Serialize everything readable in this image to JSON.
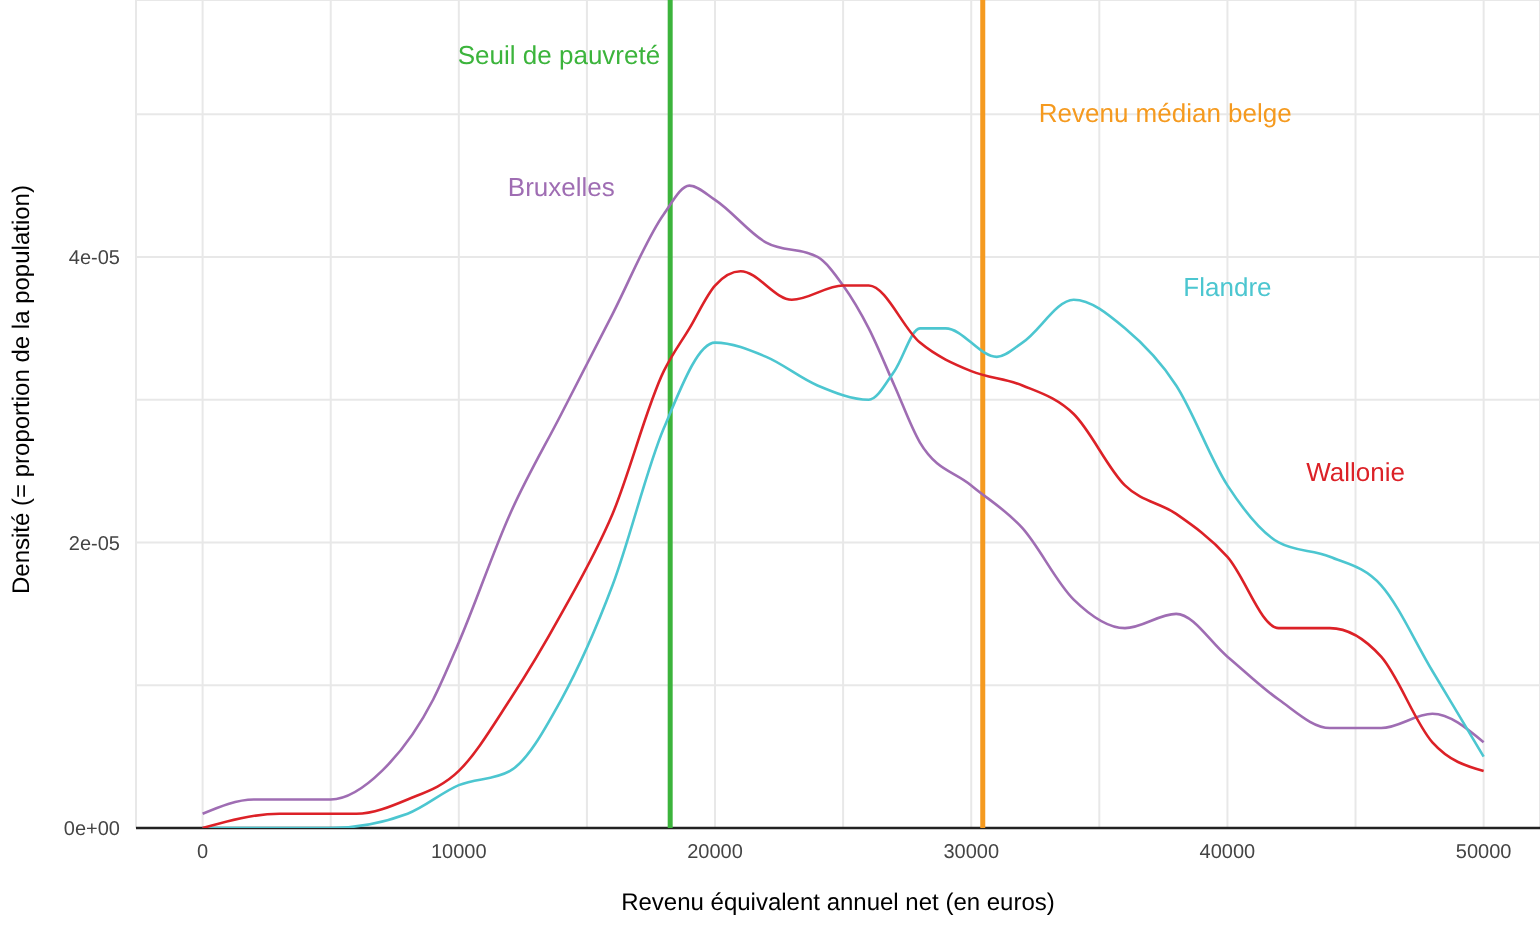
{
  "chart_data": {
    "type": "line",
    "xlabel": "Revenu équivalent annuel net (en euros)",
    "ylabel": "Densité (= proportion de la population)",
    "xlim": [
      -2600,
      52200
    ],
    "ylim": [
      0,
      5.8e-05
    ],
    "xticks": [
      0,
      {
        "value": 5000,
        "label": null
      },
      10000,
      {
        "value": 15000,
        "label": null
      },
      20000,
      {
        "value": 25000,
        "label": null
      },
      30000,
      {
        "value": 35000,
        "label": null
      },
      40000,
      {
        "value": 45000,
        "label": null
      },
      50000
    ],
    "yticks": [
      {
        "value": 0,
        "label": "0e+00"
      },
      {
        "value": 1e-05,
        "label": null
      },
      {
        "value": 2e-05,
        "label": "2e-05"
      },
      {
        "value": 3e-05,
        "label": null
      },
      {
        "value": 4e-05,
        "label": "4e-05"
      },
      {
        "value": 5e-05,
        "label": null
      }
    ],
    "grid": true,
    "legend": false,
    "marker": "none",
    "line_style": "solid",
    "series": [
      {
        "name": "Bruxelles",
        "color": "#9f6db3",
        "x": [
          0,
          2000,
          5000,
          7000,
          9000,
          10000,
          12000,
          14000,
          16000,
          18000,
          19000,
          20000,
          22000,
          24000,
          25000,
          26000,
          27000,
          28000,
          30000,
          32000,
          34000,
          36000,
          38000,
          40000,
          42000,
          44000,
          46000,
          48000,
          50000
        ],
        "values": [
          1e-06,
          2e-06,
          2e-06,
          4e-06,
          9e-06,
          1.3e-05,
          2.2e-05,
          2.9e-05,
          3.6e-05,
          4.3e-05,
          4.5e-05,
          4.4e-05,
          4.1e-05,
          4e-05,
          3.8e-05,
          3.5e-05,
          3.1e-05,
          2.7e-05,
          2.4e-05,
          2.1e-05,
          1.6e-05,
          1.4e-05,
          1.5e-05,
          1.2e-05,
          9e-06,
          7e-06,
          7e-06,
          8e-06,
          6e-06
        ]
      },
      {
        "name": "Flandre",
        "color": "#4cc6d0",
        "x": [
          0,
          5000,
          8000,
          10000,
          12000,
          14000,
          16000,
          18000,
          20000,
          22000,
          24000,
          26000,
          27000,
          28000,
          29000,
          31000,
          32000,
          34000,
          36000,
          38000,
          40000,
          42000,
          44000,
          46000,
          48000,
          50000
        ],
        "values": [
          0,
          0,
          1e-06,
          3e-06,
          4e-06,
          9e-06,
          1.7e-05,
          2.8e-05,
          3.4e-05,
          3.3e-05,
          3.1e-05,
          3e-05,
          3.2e-05,
          3.5e-05,
          3.5e-05,
          3.3e-05,
          3.4e-05,
          3.7e-05,
          3.5e-05,
          3.1e-05,
          2.4e-05,
          2e-05,
          1.9e-05,
          1.7e-05,
          1.1e-05,
          5e-06
        ]
      },
      {
        "name": "Wallonie",
        "color": "#dc2127",
        "x": [
          0,
          3000,
          6000,
          8000,
          10000,
          12000,
          14000,
          16000,
          18000,
          19000,
          20000,
          21000,
          23000,
          25000,
          26000,
          28000,
          30000,
          32000,
          34000,
          36000,
          38000,
          40000,
          42000,
          44000,
          46000,
          48000,
          50000
        ],
        "values": [
          0,
          1e-06,
          1e-06,
          2e-06,
          4e-06,
          9e-06,
          1.5e-05,
          2.2e-05,
          3.2e-05,
          3.5e-05,
          3.8e-05,
          3.9e-05,
          3.7e-05,
          3.8e-05,
          3.8e-05,
          3.4e-05,
          3.2e-05,
          3.1e-05,
          2.9e-05,
          2.4e-05,
          2.2e-05,
          1.9e-05,
          1.4e-05,
          1.4e-05,
          1.2e-05,
          6e-06,
          4e-06
        ]
      }
    ],
    "ref_lines": [
      {
        "axis": "x",
        "value": 18250,
        "label": "Seuil de pauvreté",
        "color": "#3cb43c"
      },
      {
        "axis": "x",
        "value": 30450,
        "label": "Revenu médian belge",
        "color": "#f59a1f"
      }
    ]
  }
}
